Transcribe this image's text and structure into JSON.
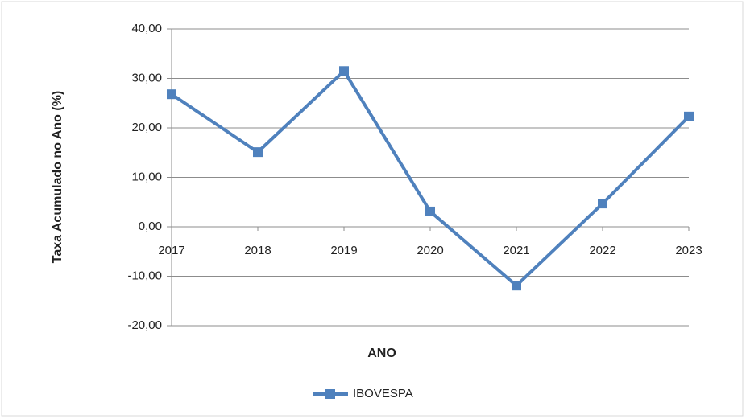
{
  "chart_data": {
    "type": "line",
    "x_label": "ANO",
    "y_label": "Taxa Acumulado no Ano (%)",
    "categories": [
      "2017",
      "2018",
      "2019",
      "2020",
      "2021",
      "2022",
      "2023"
    ],
    "series": [
      {
        "name": "IBOVESPA",
        "color": "#4f81bd",
        "values": [
          26.8,
          15.1,
          31.5,
          3.1,
          -11.9,
          4.7,
          22.3
        ]
      }
    ],
    "ylim": [
      -20,
      40
    ],
    "yticks": [
      {
        "value": -20,
        "label": "-20,00"
      },
      {
        "value": -10,
        "label": "-10,00"
      },
      {
        "value": 0,
        "label": "0,00"
      },
      {
        "value": 10,
        "label": "10,00"
      },
      {
        "value": 20,
        "label": "20,00"
      },
      {
        "value": 30,
        "label": "30,00"
      },
      {
        "value": 40,
        "label": "40,00"
      }
    ],
    "grid": true,
    "legend": "bottom"
  }
}
